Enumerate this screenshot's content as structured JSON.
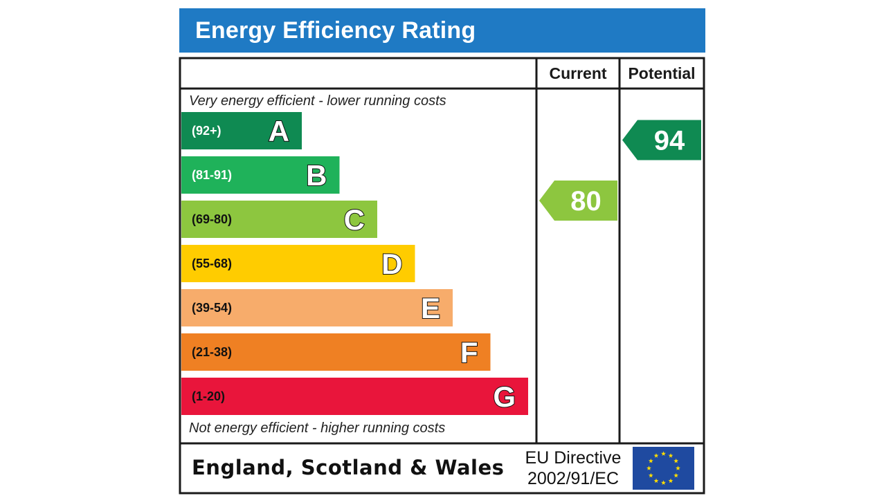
{
  "title": "Energy Efficiency Rating",
  "columns": {
    "current": "Current",
    "potential": "Potential"
  },
  "notes": {
    "top": "Very energy efficient - lower running costs",
    "bottom": "Not energy efficient - higher running costs"
  },
  "footer": {
    "region": "England, Scotland & Wales",
    "directive_line1": "EU Directive",
    "directive_line2": "2002/91/EC",
    "flag_icon": "eu-flag-icon"
  },
  "chart_data": {
    "type": "bar",
    "categories": [
      "A",
      "B",
      "C",
      "D",
      "E",
      "F",
      "G"
    ],
    "bands": [
      {
        "letter": "A",
        "range": "(92+)",
        "min": 92,
        "max": 100,
        "color": "#0f8a52",
        "text_color": "#ffffff"
      },
      {
        "letter": "B",
        "range": "(81-91)",
        "min": 81,
        "max": 91,
        "color": "#1fb25a",
        "text_color": "#ffffff"
      },
      {
        "letter": "C",
        "range": "(69-80)",
        "min": 69,
        "max": 80,
        "color": "#8dc63f",
        "text_color": "#111111"
      },
      {
        "letter": "D",
        "range": "(55-68)",
        "min": 55,
        "max": 68,
        "color": "#ffcc00",
        "text_color": "#111111"
      },
      {
        "letter": "E",
        "range": "(39-54)",
        "min": 39,
        "max": 54,
        "color": "#f7ac6b",
        "text_color": "#111111"
      },
      {
        "letter": "F",
        "range": "(21-38)",
        "min": 21,
        "max": 38,
        "color": "#ef8023",
        "text_color": "#111111"
      },
      {
        "letter": "G",
        "range": "(1-20)",
        "min": 1,
        "max": 20,
        "color": "#e9153b",
        "text_color": "#111111"
      }
    ],
    "ratings": {
      "current": {
        "value": 80,
        "band": "C",
        "color": "#8dc63f"
      },
      "potential": {
        "value": 94,
        "band": "A",
        "color": "#0f8a52"
      }
    }
  }
}
